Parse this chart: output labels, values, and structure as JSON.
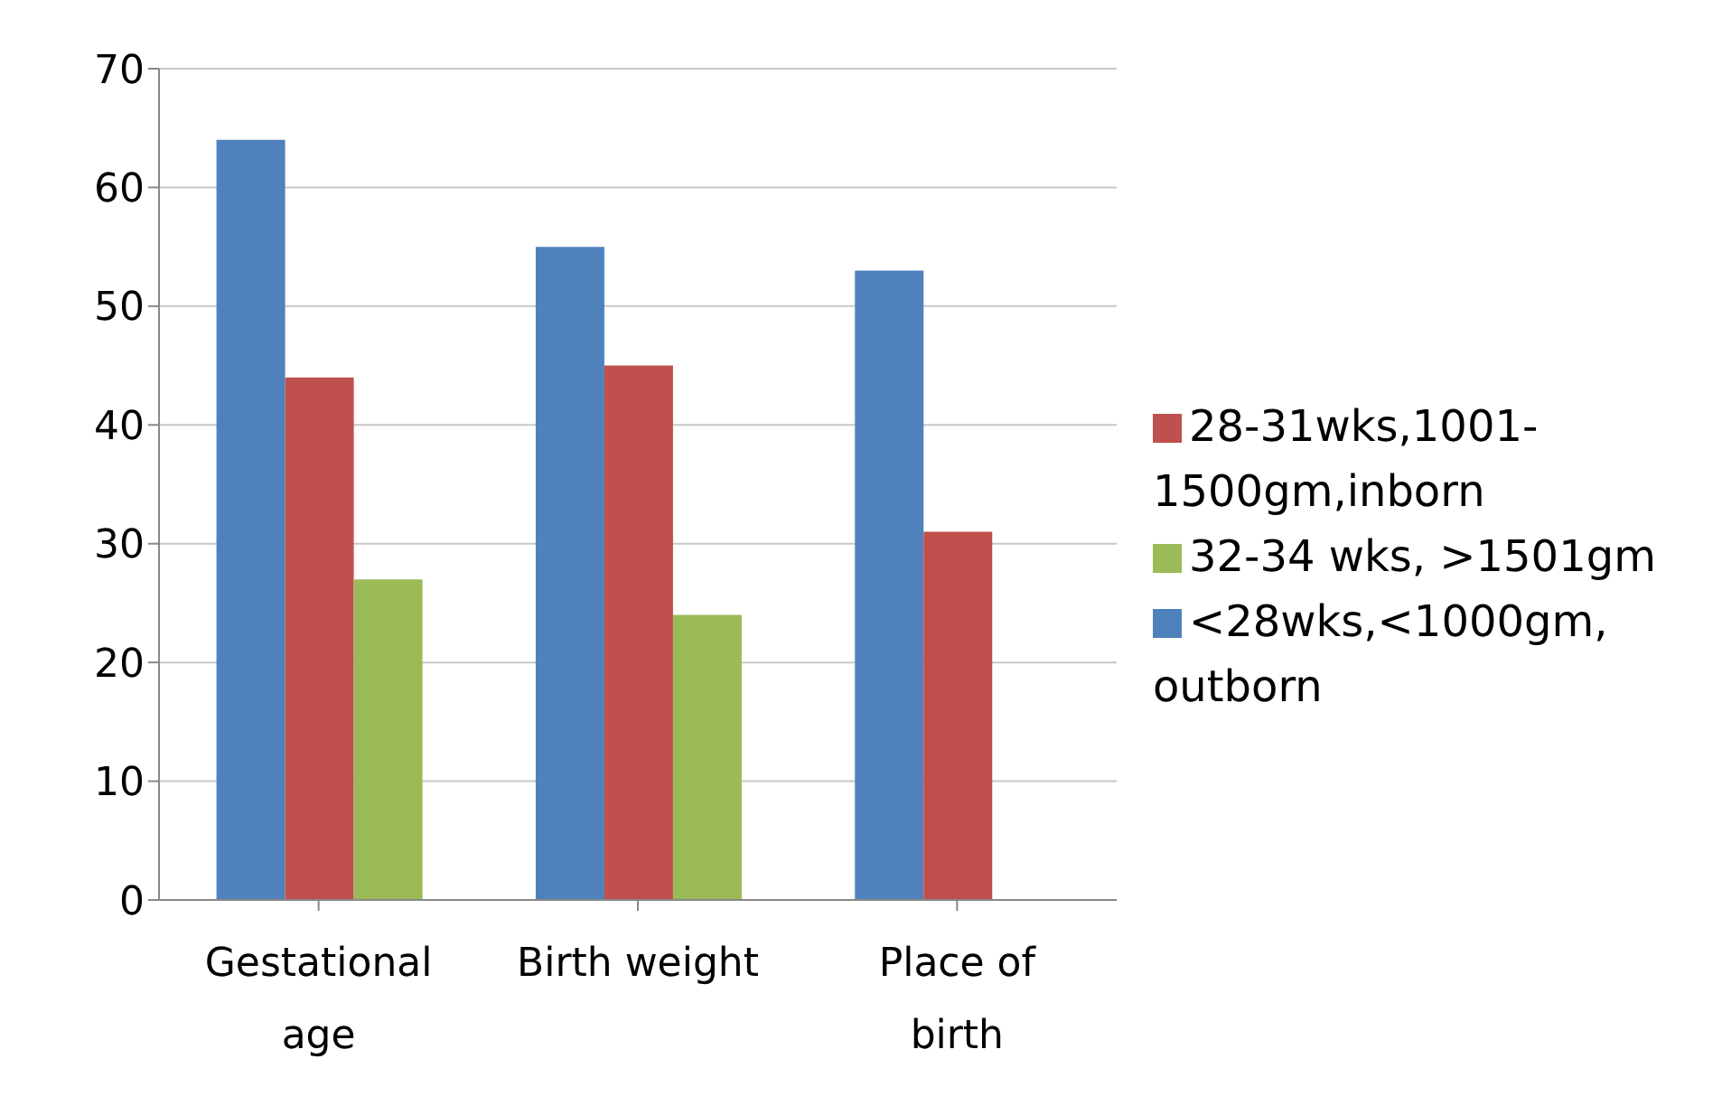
{
  "chart_data": {
    "type": "bar",
    "categories": [
      "Gestational age",
      "Birth weight",
      "Place of birth"
    ],
    "series": [
      {
        "name": "<28wks,<1000gm, outborn",
        "color": "#4f81bd",
        "values": [
          64,
          55,
          53
        ]
      },
      {
        "name": "28-31wks,1001-1500gm,inborn",
        "color": "#c0504d",
        "values": [
          44,
          45,
          31
        ]
      },
      {
        "name": "32-34 wks, >1501gm",
        "color": "#9bbb59",
        "values": [
          27,
          24,
          null
        ]
      }
    ],
    "ylim": [
      0,
      70
    ],
    "yticks": [
      0,
      10,
      20,
      30,
      40,
      50,
      60,
      70
    ],
    "grid": "y",
    "legend": "right"
  }
}
